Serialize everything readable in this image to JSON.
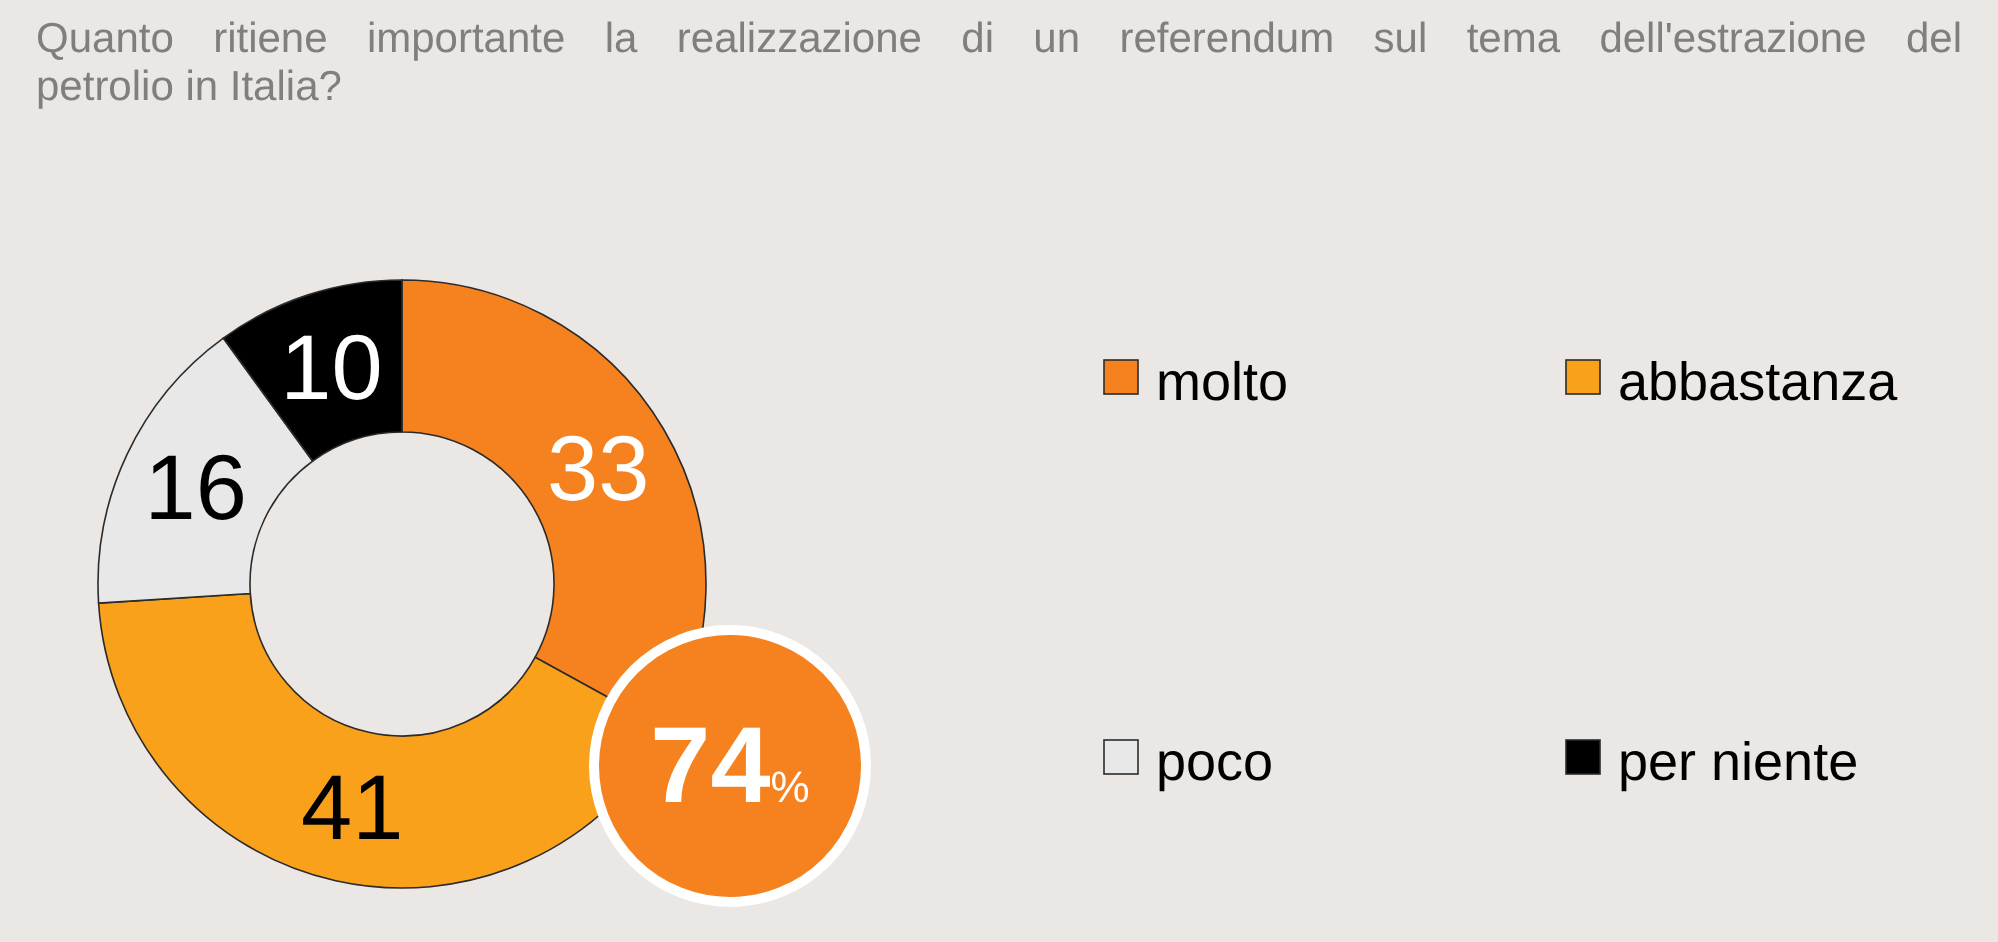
{
  "chart_data": {
    "type": "donut",
    "title": "Quanto ritiene importante la realizzazione di un referendum sul tema dell'estrazione del petrolio in Italia?",
    "categories": [
      "molto",
      "abbastanza",
      "poco",
      "per niente"
    ],
    "values": [
      33,
      41,
      16,
      10
    ],
    "colors": [
      "#f5821f",
      "#f9a11b",
      "#e8e8e8",
      "#000000"
    ],
    "data_labels": true,
    "legend": "right",
    "annotations": [
      "74%"
    ]
  }
}
